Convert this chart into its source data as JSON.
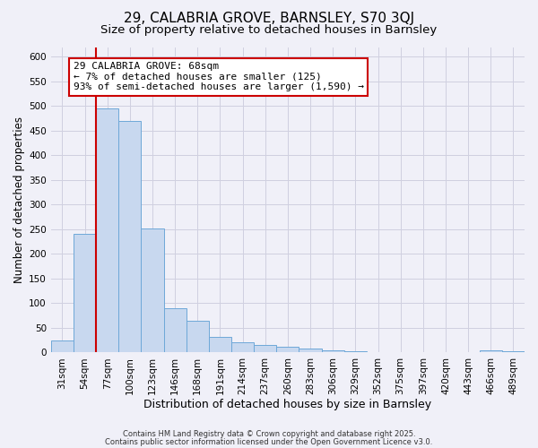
{
  "title": "29, CALABRIA GROVE, BARNSLEY, S70 3QJ",
  "subtitle": "Size of property relative to detached houses in Barnsley",
  "xlabel": "Distribution of detached houses by size in Barnsley",
  "ylabel": "Number of detached properties",
  "bar_labels": [
    "31sqm",
    "54sqm",
    "77sqm",
    "100sqm",
    "123sqm",
    "146sqm",
    "168sqm",
    "191sqm",
    "214sqm",
    "237sqm",
    "260sqm",
    "283sqm",
    "306sqm",
    "329sqm",
    "352sqm",
    "375sqm",
    "397sqm",
    "420sqm",
    "443sqm",
    "466sqm",
    "489sqm"
  ],
  "bar_values": [
    25,
    240,
    495,
    470,
    252,
    90,
    64,
    31,
    21,
    15,
    12,
    8,
    5,
    2,
    1,
    1,
    0,
    0,
    0,
    5,
    2
  ],
  "bar_color": "#c8d8ef",
  "bar_edge_color": "#6ea8d8",
  "vline_x": 1.5,
  "vline_color": "#cc0000",
  "annotation_title": "29 CALABRIA GROVE: 68sqm",
  "annotation_line1": "← 7% of detached houses are smaller (125)",
  "annotation_line2": "93% of semi-detached houses are larger (1,590) →",
  "annotation_box_facecolor": "#ffffff",
  "annotation_box_edgecolor": "#cc0000",
  "ylim": [
    0,
    620
  ],
  "yticks": [
    0,
    50,
    100,
    150,
    200,
    250,
    300,
    350,
    400,
    450,
    500,
    550,
    600
  ],
  "footer1": "Contains HM Land Registry data © Crown copyright and database right 2025.",
  "footer2": "Contains public sector information licensed under the Open Government Licence v3.0.",
  "bg_color": "#f0f0f8",
  "grid_color": "#d0d0e0",
  "title_fontsize": 11,
  "subtitle_fontsize": 9.5,
  "xlabel_fontsize": 9,
  "ylabel_fontsize": 8.5,
  "tick_fontsize": 7.5,
  "annotation_fontsize": 8,
  "footer_fontsize": 6
}
